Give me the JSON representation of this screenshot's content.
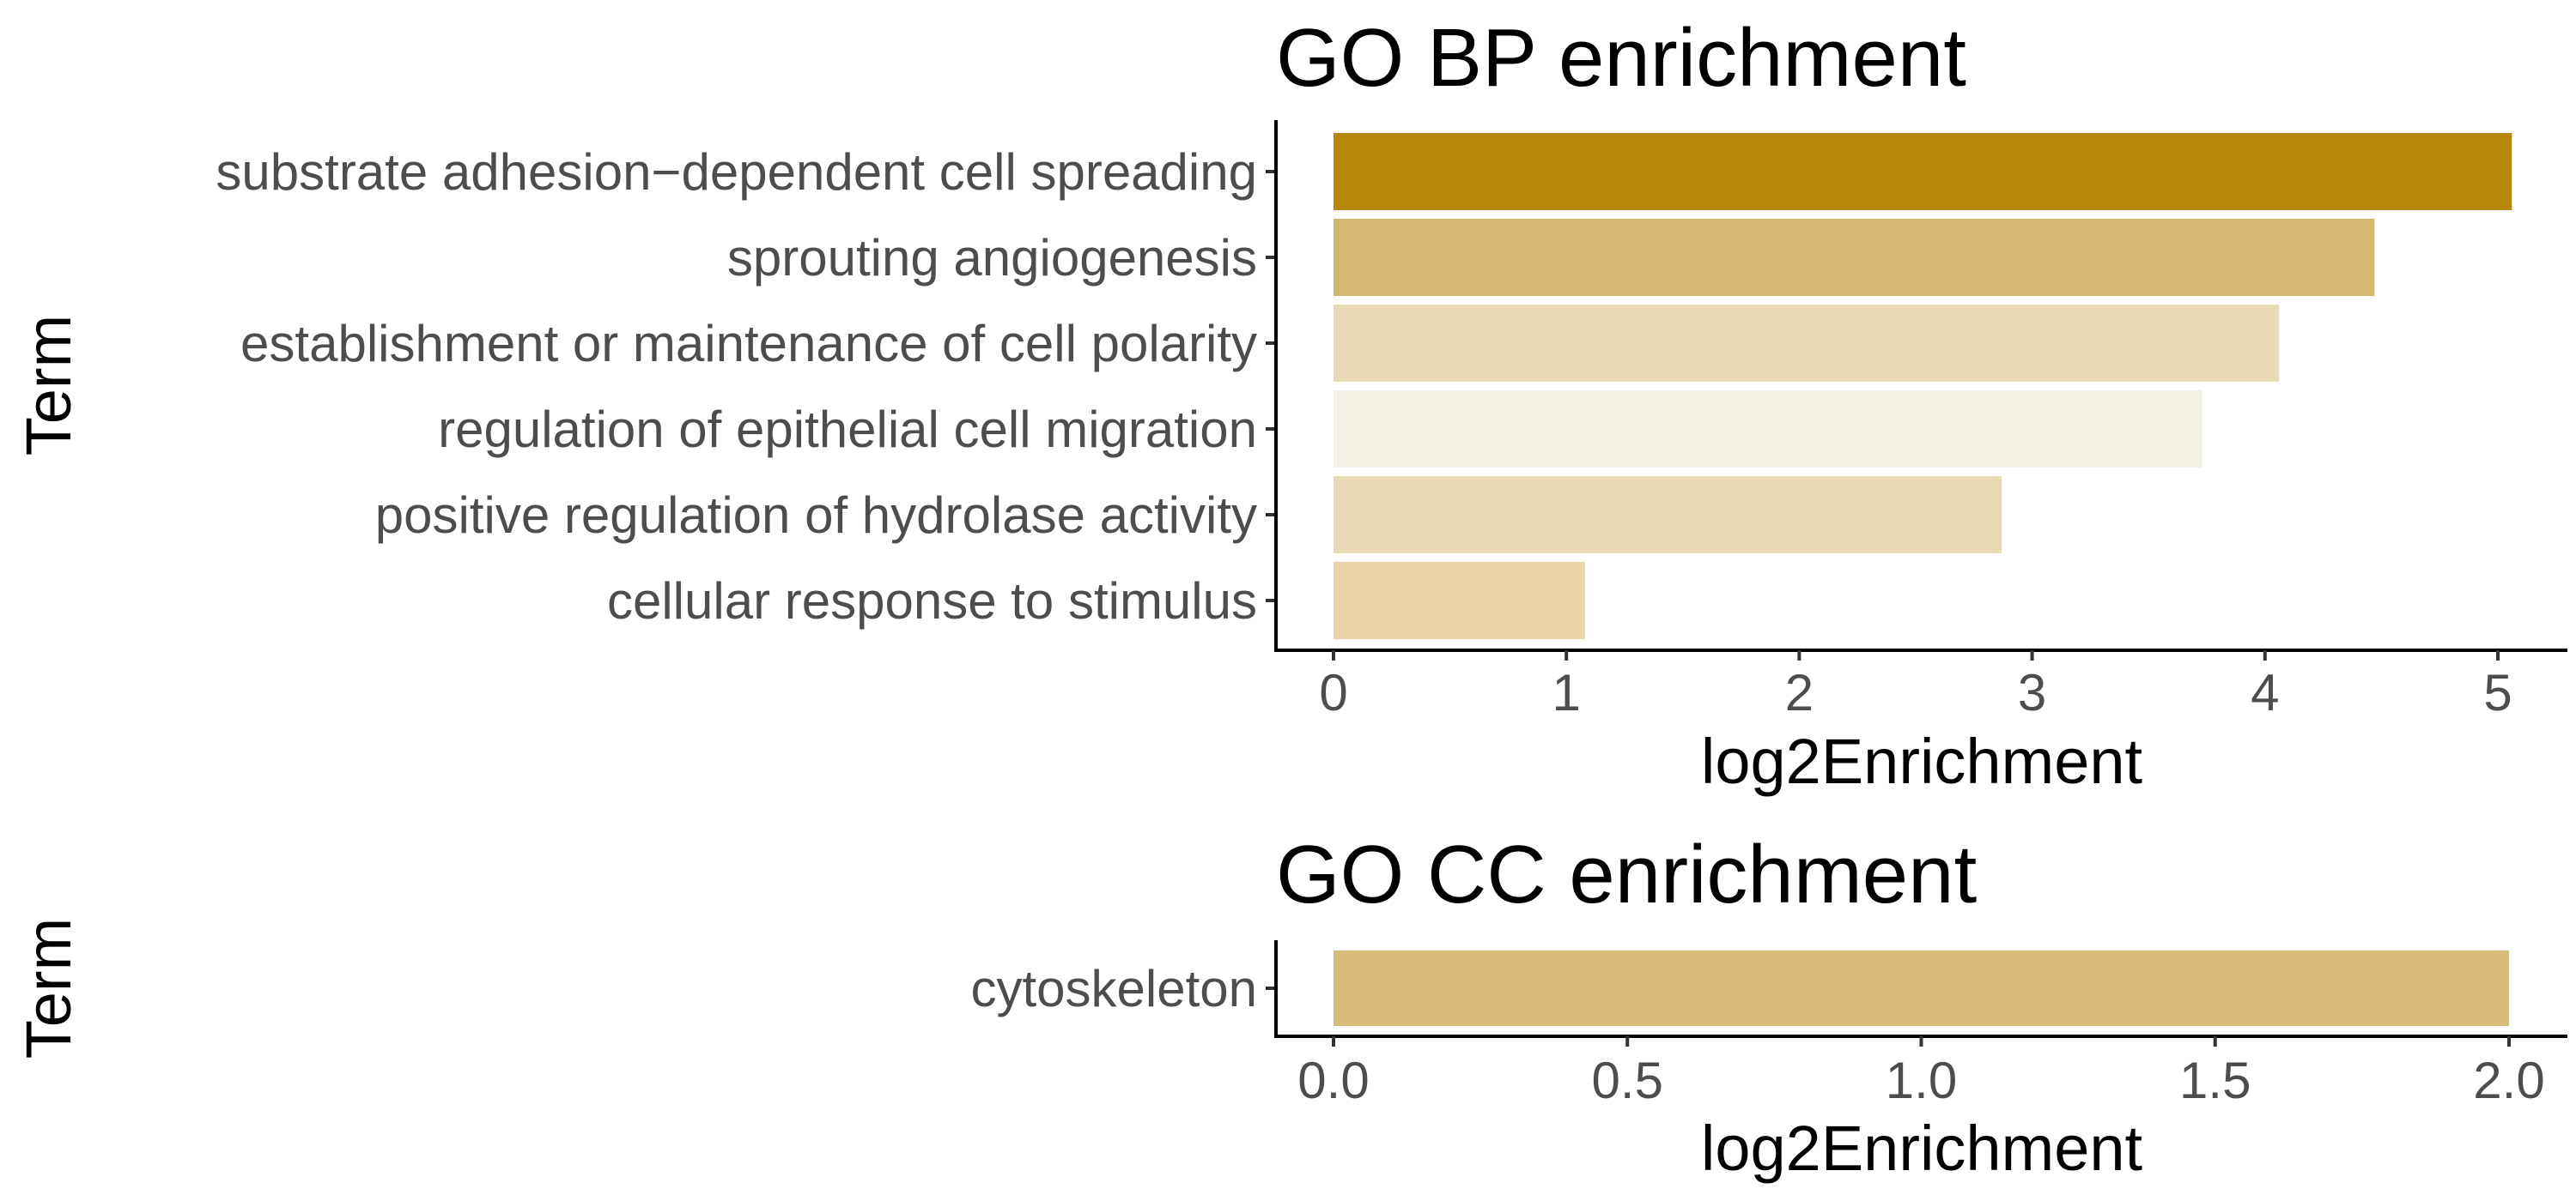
{
  "chart_data": [
    {
      "type": "bar",
      "orientation": "horizontal",
      "title": "GO BP enrichment",
      "xlabel": "log2Enrichment",
      "ylabel": "Term",
      "xlim": [
        0,
        5.3
      ],
      "xticks": [
        0,
        1,
        2,
        3,
        4,
        5
      ],
      "xtick_labels": [
        "0",
        "1",
        "2",
        "3",
        "4",
        "5"
      ],
      "grid": false,
      "categories": [
        "substrate adhesion−dependent cell spreading",
        "sprouting angiogenesis",
        "establishment or maintenance of cell polarity",
        "regulation of epithelial cell migration",
        "positive regulation of hydrolase activity",
        "cellular response to stimulus"
      ],
      "values": [
        5.06,
        4.47,
        4.06,
        3.73,
        2.87,
        1.08
      ],
      "bar_colors": [
        "#b8860b",
        "#d4b871",
        "#e9dbb5",
        "#f5f0e4",
        "#e9dbb5",
        "#e9d5a9"
      ]
    },
    {
      "type": "bar",
      "orientation": "horizontal",
      "title": "GO CC enrichment",
      "xlabel": "log2Enrichment",
      "ylabel": "Term",
      "xlim": [
        0,
        2.1
      ],
      "xticks": [
        0,
        0.5,
        1.0,
        1.5,
        2.0
      ],
      "xtick_labels": [
        "0.0",
        "0.5",
        "1.0",
        "1.5",
        "2.0"
      ],
      "grid": false,
      "categories": [
        "cytoskeleton"
      ],
      "values": [
        2.0
      ],
      "bar_colors": [
        "#d6bb79"
      ]
    }
  ]
}
